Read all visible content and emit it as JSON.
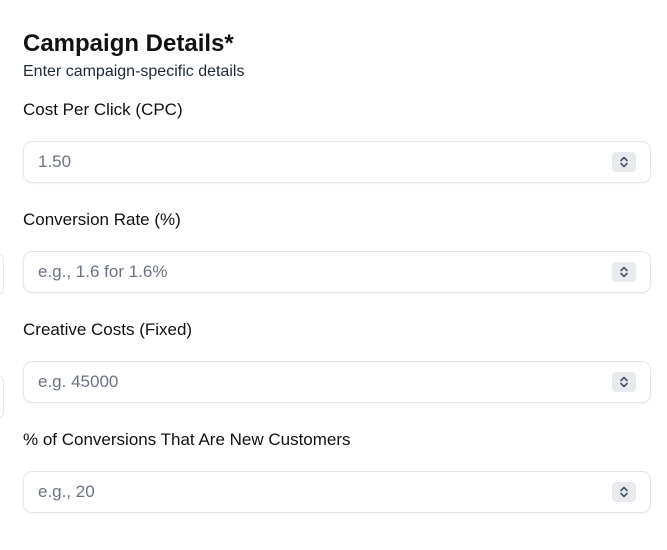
{
  "section": {
    "title": "Campaign Details*",
    "subtitle": "Enter campaign-specific details"
  },
  "fields": [
    {
      "label": "Cost Per Click (CPC)",
      "value": "",
      "placeholder": "1.50",
      "icon": "chevron-up-down-icon"
    },
    {
      "label": "Conversion Rate (%)",
      "value": "",
      "placeholder": "e.g., 1.6 for 1.6%",
      "icon": "chevron-up-down-icon"
    },
    {
      "label": "Creative Costs (Fixed)",
      "value": "",
      "placeholder": "e.g. 45000",
      "icon": "chevron-up-down-icon"
    },
    {
      "label": "% of Conversions That Are New Customers",
      "value": "",
      "placeholder": "e.g., 20",
      "icon": "chevron-up-down-icon"
    }
  ]
}
